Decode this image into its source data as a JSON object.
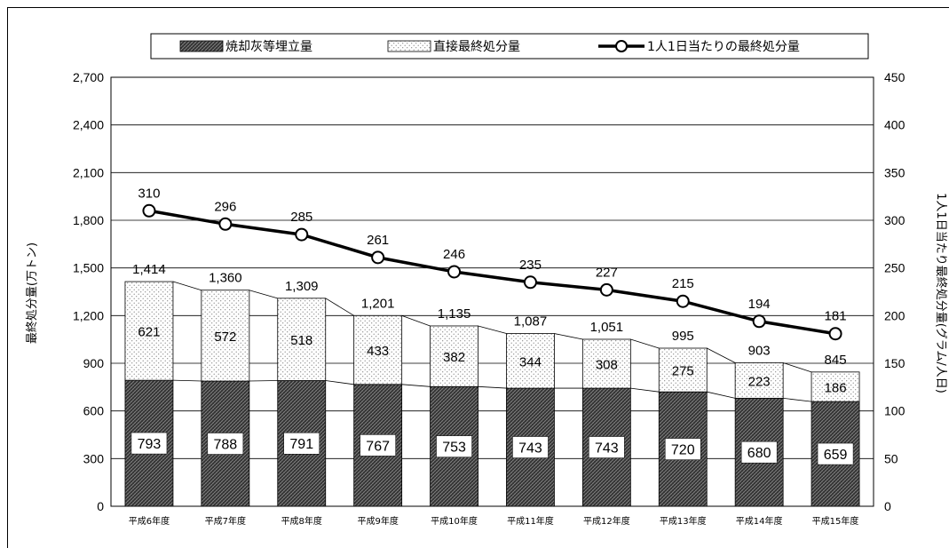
{
  "chart_data": {
    "type": "bar",
    "categories": [
      "平成6年度",
      "平成7年度",
      "平成8年度",
      "平成9年度",
      "平成10年度",
      "平成11年度",
      "平成12年度",
      "平成13年度",
      "平成14年度",
      "平成15年度"
    ],
    "series": [
      {
        "name": "焼却灰等埋立量",
        "type": "stacked-bar",
        "axis": "left",
        "values": [
          793,
          788,
          791,
          767,
          753,
          743,
          743,
          720,
          680,
          659
        ]
      },
      {
        "name": "直接最終処分量",
        "type": "stacked-bar",
        "axis": "left",
        "values": [
          621,
          572,
          518,
          433,
          382,
          344,
          308,
          275,
          223,
          186
        ]
      },
      {
        "name": "1人1日当たりの最終処分量",
        "type": "line",
        "axis": "right",
        "values": [
          310,
          296,
          285,
          261,
          246,
          235,
          227,
          215,
          194,
          181
        ]
      }
    ],
    "totals": [
      "1,414",
      "1,360",
      "1,309",
      "1,201",
      "1,135",
      "1,087",
      "1,051",
      "995",
      "903",
      "845"
    ],
    "ylabel": "最終処分量(万トン)",
    "y2label": "1人1日当たり最終処分量(グラム/人日)",
    "ylim": [
      0,
      2700
    ],
    "y2lim": [
      0,
      450
    ],
    "yticks": [
      "0",
      "300",
      "600",
      "900",
      "1,200",
      "1,500",
      "1,800",
      "2,100",
      "2,400",
      "2,700"
    ],
    "y2ticks": [
      "0",
      "50",
      "100",
      "150",
      "200",
      "250",
      "300",
      "350",
      "400",
      "450"
    ],
    "legend_position": "top",
    "grid": "horizontal",
    "colors": {
      "bar_bottom": "#3a3a3a",
      "bar_top": "#ffffff",
      "line": "#000000"
    }
  }
}
